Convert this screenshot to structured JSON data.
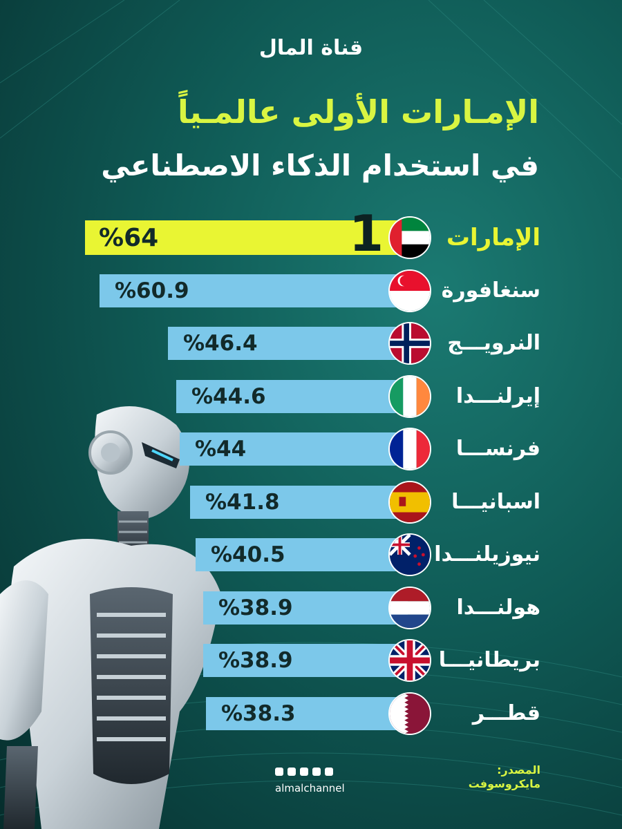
{
  "brand": {
    "logo_text": "قناة المال",
    "handle": "almalchannel"
  },
  "headline": {
    "line1_highlight": "الإمـارات الأولى عالمـياً",
    "line2": "في استخدام الذكاء الاصطناعي"
  },
  "source": {
    "label": "المصدر:",
    "name": "مايكروسوفت"
  },
  "rank_badge": "1",
  "colors": {
    "accent": "#e9f533",
    "bar": "#7cc8ea",
    "background": "#0f5a55"
  },
  "chart_data": {
    "type": "bar",
    "orientation": "horizontal",
    "categories": [
      "الإمارات",
      "سنغافورة",
      "النرويـــج",
      "إيرلنـــدا",
      "فرنســـا",
      "اسبانيـــا",
      "نيوزيلنـــدا",
      "هولنـــدا",
      "بريطانيـــا",
      "قطـــر"
    ],
    "values": [
      64,
      60.9,
      46.4,
      44.6,
      44,
      41.8,
      40.5,
      38.9,
      38.9,
      38.3
    ],
    "value_labels": [
      "%64",
      "%60.9",
      "%46.4",
      "%44.6",
      "%44",
      "%41.8",
      "%40.5",
      "%38.9",
      "%38.9",
      "%38.3"
    ],
    "flags": [
      "uae-flag",
      "singapore-flag",
      "norway-flag",
      "ireland-flag",
      "france-flag",
      "spain-flag",
      "new-zealand-flag",
      "netherlands-flag",
      "uk-flag",
      "qatar-flag"
    ]
  }
}
